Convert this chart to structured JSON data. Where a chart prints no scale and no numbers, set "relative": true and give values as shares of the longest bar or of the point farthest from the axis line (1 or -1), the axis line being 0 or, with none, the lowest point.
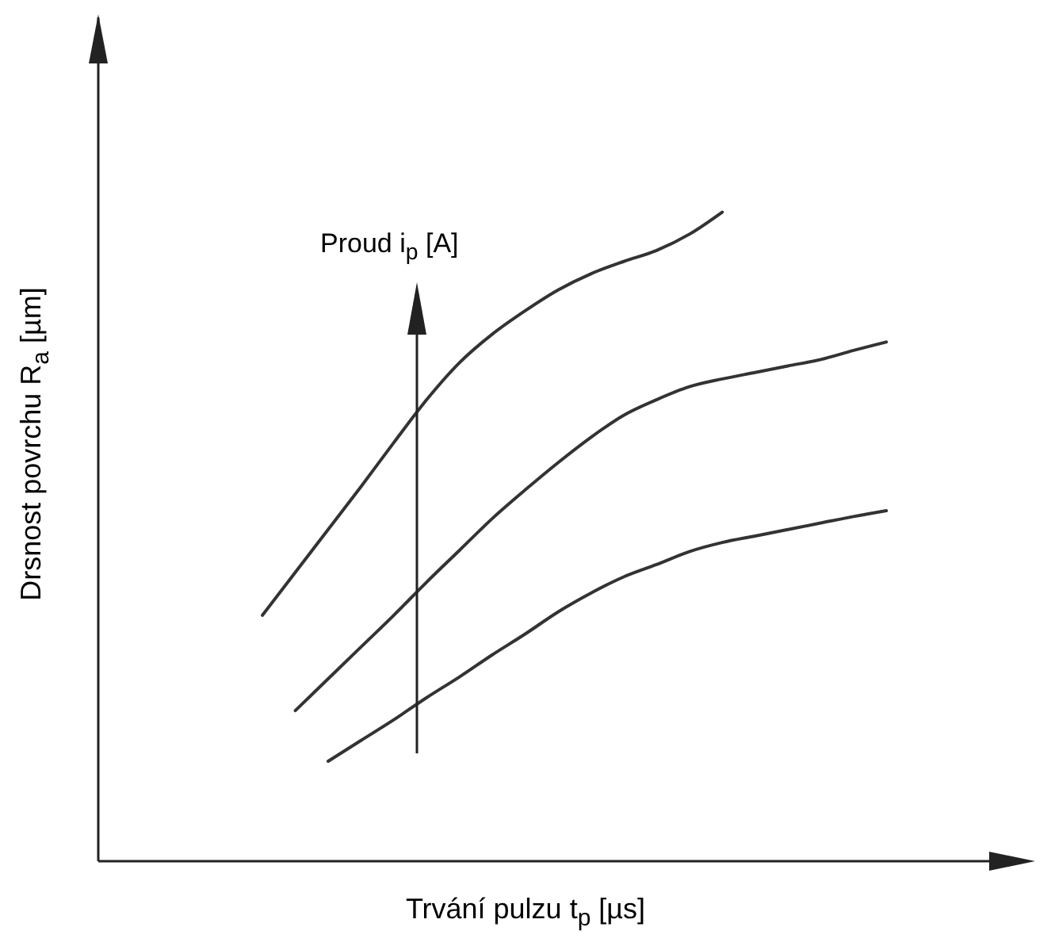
{
  "chart_data": {
    "type": "line",
    "relative": true,
    "xlabel": "Trvání pulzu t$_{p}$ [µs]",
    "ylabel": "Drsnost povrchu R$_{a}$ [µm]",
    "annotations": [
      "Proud i$_{p}$ [A]"
    ],
    "grid": false,
    "legend": false,
    "marker": "none",
    "line_style": "solid",
    "categories": [
      null,
      null,
      null,
      null,
      null,
      null,
      null,
      null,
      null,
      null,
      null,
      null,
      null,
      null,
      null,
      null,
      null,
      null,
      null,
      null,
      null,
      null,
      null,
      null,
      null,
      null,
      null,
      null,
      null
    ],
    "series": [
      {
        "color": "#333333",
        "values": [
          null,
          null,
          null,
          null,
          null,
          0.379,
          0.445,
          0.511,
          0.577,
          0.645,
          0.711,
          0.768,
          0.812,
          0.848,
          0.88,
          0.905,
          0.924,
          0.941,
          0.966,
          1.0,
          null,
          null,
          null,
          null,
          null,
          null,
          null,
          null,
          null
        ]
      },
      {
        "color": "#333333",
        "values": [
          null,
          null,
          null,
          null,
          null,
          null,
          0.232,
          0.281,
          0.33,
          0.379,
          0.43,
          0.479,
          0.528,
          0.572,
          0.614,
          0.653,
          0.687,
          0.711,
          0.731,
          0.743,
          0.753,
          0.763,
          0.773,
          0.787,
          0.8,
          null,
          null,
          null,
          null
        ]
      },
      {
        "color": "#333333",
        "values": [
          null,
          null,
          null,
          null,
          null,
          null,
          null,
          0.154,
          0.186,
          0.218,
          0.252,
          0.284,
          0.318,
          0.35,
          0.384,
          0.413,
          0.438,
          0.457,
          0.477,
          0.491,
          0.501,
          0.511,
          0.521,
          0.531,
          0.54,
          null,
          null,
          null,
          null
        ]
      }
    ]
  }
}
